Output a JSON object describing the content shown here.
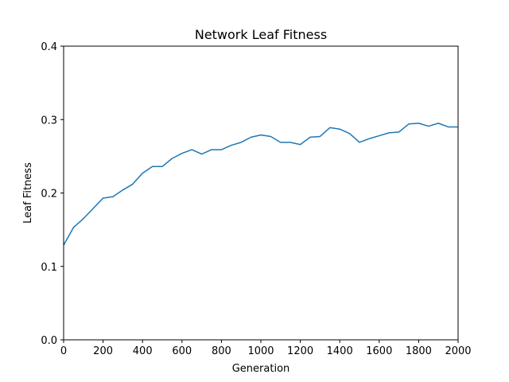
{
  "chart_data": {
    "type": "line",
    "title": "Network Leaf Fitness",
    "xlabel": "Generation",
    "ylabel": "Leaf Fitness",
    "xlim": [
      0,
      2000
    ],
    "ylim": [
      0,
      0.4
    ],
    "xticks": [
      0,
      200,
      400,
      600,
      800,
      1000,
      1200,
      1400,
      1600,
      1800,
      2000
    ],
    "xtick_labels": [
      "0",
      "200",
      "400",
      "600",
      "800",
      "1000",
      "1200",
      "1400",
      "1600",
      "1800",
      "2000"
    ],
    "yticks": [
      0.0,
      0.1,
      0.2,
      0.3,
      0.4
    ],
    "ytick_labels": [
      "0.0",
      "0.1",
      "0.2",
      "0.3",
      "0.4"
    ],
    "grid": false,
    "series": [
      {
        "color": "#1f77b4",
        "x": [
          0,
          50,
          100,
          150,
          200,
          250,
          300,
          350,
          400,
          450,
          500,
          550,
          600,
          650,
          700,
          750,
          800,
          850,
          900,
          950,
          1000,
          1050,
          1100,
          1150,
          1200,
          1250,
          1300,
          1350,
          1400,
          1450,
          1500,
          1550,
          1600,
          1650,
          1700,
          1750,
          1800,
          1850,
          1900,
          1950,
          2000
        ],
        "y": [
          0.129,
          0.153,
          0.165,
          0.179,
          0.193,
          0.195,
          0.204,
          0.212,
          0.227,
          0.236,
          0.236,
          0.247,
          0.254,
          0.259,
          0.253,
          0.259,
          0.259,
          0.265,
          0.269,
          0.276,
          0.279,
          0.277,
          0.269,
          0.269,
          0.266,
          0.276,
          0.277,
          0.289,
          0.287,
          0.281,
          0.269,
          0.274,
          0.278,
          0.282,
          0.283,
          0.294,
          0.295,
          0.291,
          0.295,
          0.29,
          0.29
        ]
      }
    ]
  }
}
